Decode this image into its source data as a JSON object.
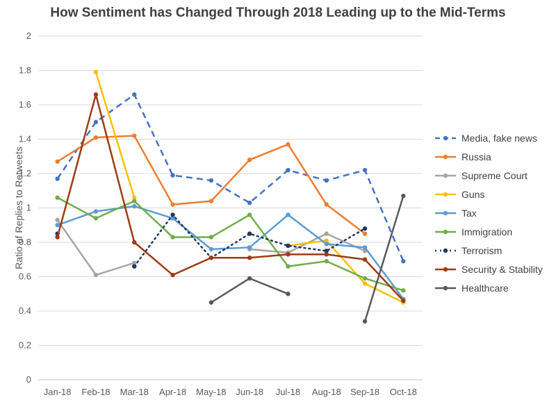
{
  "chart_data": {
    "type": "line",
    "title": "How Sentiment has Changed Through 2018 Leading up to the Mid-Terms",
    "xlabel": "",
    "ylabel": "Ratio of Replies to Retweets",
    "ylim": [
      0,
      2
    ],
    "yticks": [
      "0",
      "0.2",
      "0.4",
      "0.6",
      "0.8",
      "1",
      "1.2",
      "1.4",
      "1.6",
      "1.8",
      "2"
    ],
    "categories": [
      "Jan-18",
      "Feb-18",
      "Mar-18",
      "Apr-18",
      "May-18",
      "Jun-18",
      "Jul-18",
      "Aug-18",
      "Sep-18",
      "Oct-18"
    ],
    "grid": true,
    "legend": "right",
    "series": [
      {
        "name": "Media, fake news",
        "color": "#4472C4",
        "dash": "dashed",
        "values": [
          1.17,
          1.5,
          1.66,
          1.19,
          1.16,
          1.03,
          1.22,
          1.16,
          1.22,
          0.69
        ]
      },
      {
        "name": "Russia",
        "color": "#ED7D31",
        "dash": "solid",
        "values": [
          1.27,
          1.41,
          1.42,
          1.02,
          1.04,
          1.28,
          1.37,
          1.02,
          0.85,
          null
        ]
      },
      {
        "name": "Supreme Court",
        "color": "#A5A5A5",
        "dash": "solid",
        "values": [
          0.93,
          0.61,
          0.68,
          null,
          null,
          0.76,
          0.74,
          0.85,
          0.75,
          null
        ]
      },
      {
        "name": "Guns",
        "color": "#FFC000",
        "dash": "solid",
        "values": [
          null,
          1.79,
          1.06,
          null,
          null,
          null,
          0.78,
          0.81,
          0.56,
          0.45
        ]
      },
      {
        "name": "Tax",
        "color": "#5B9BD5",
        "dash": "solid",
        "values": [
          0.9,
          0.98,
          1.01,
          0.94,
          0.76,
          0.77,
          0.96,
          0.79,
          0.77,
          0.47
        ]
      },
      {
        "name": "Immigration",
        "color": "#70AD47",
        "dash": "solid",
        "values": [
          1.06,
          0.94,
          1.04,
          0.83,
          0.83,
          0.96,
          0.66,
          0.69,
          0.59,
          0.52
        ]
      },
      {
        "name": "Terrorism",
        "color": "#1F3864",
        "dash": "dotted",
        "values": [
          0.85,
          null,
          0.66,
          0.96,
          0.71,
          0.85,
          0.78,
          0.75,
          0.88,
          null
        ]
      },
      {
        "name": "Security & Stability",
        "color": "#9E3A12",
        "dash": "solid",
        "values": [
          0.83,
          1.66,
          0.8,
          0.61,
          0.71,
          0.71,
          0.73,
          0.73,
          0.7,
          0.46
        ]
      },
      {
        "name": "Healthcare",
        "color": "#595959",
        "dash": "solid",
        "values": [
          null,
          null,
          null,
          null,
          0.45,
          0.59,
          0.5,
          null,
          0.34,
          1.07
        ]
      }
    ]
  }
}
